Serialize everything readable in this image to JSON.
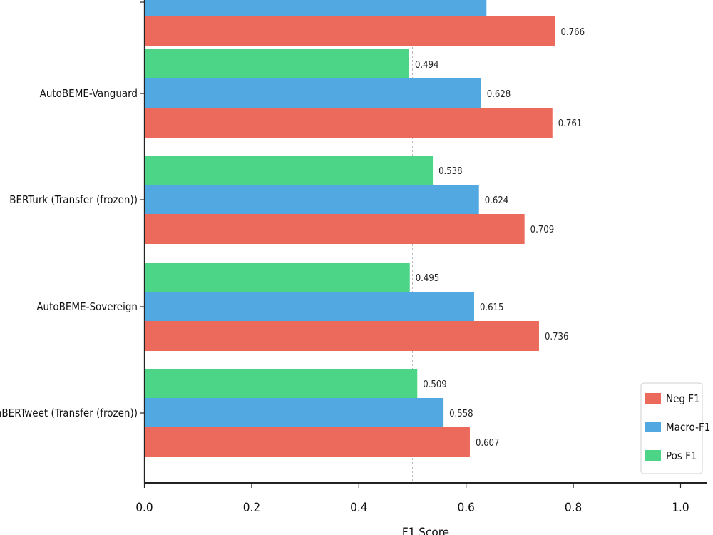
{
  "chart_data": {
    "type": "bar",
    "orientation": "horizontal",
    "xlabel": "F1 Score",
    "ylabel": "",
    "xlim": [
      0,
      1.05
    ],
    "xticks": [
      "0.0",
      "0.2",
      "0.4",
      "0.6",
      "0.8",
      "1.0"
    ],
    "reference_line": 0.5,
    "legend_position": "bottom-right",
    "categories": [
      "",
      "AutoBEME-Vanguard",
      "BERTurk (Transfer (frozen))",
      "AutoBEME-Sovereign",
      "TurkishBERTweet (Transfer (frozen))"
    ],
    "series": [
      {
        "name": "Pos F1",
        "color": "#4cd487",
        "values": [
          null,
          0.494,
          0.538,
          0.495,
          0.509
        ],
        "labels": [
          "",
          "0.494",
          "0.538",
          "0.495",
          "0.509"
        ]
      },
      {
        "name": "Macro-F1",
        "color": "#52a8e0",
        "values": [
          0.638,
          0.628,
          0.624,
          0.615,
          0.558
        ],
        "labels": [
          "",
          "0.628",
          "0.624",
          "0.615",
          "0.558"
        ]
      },
      {
        "name": "Neg F1",
        "color": "#ec6a5c",
        "values": [
          0.766,
          0.761,
          0.709,
          0.736,
          0.607
        ],
        "labels": [
          "0.766",
          "0.761",
          "0.709",
          "0.736",
          "0.607"
        ]
      }
    ],
    "legend": [
      {
        "name": "Neg F1",
        "color": "#ec6a5c"
      },
      {
        "name": "Macro-F1",
        "color": "#52a8e0"
      },
      {
        "name": "Pos F1",
        "color": "#4cd487"
      }
    ]
  }
}
